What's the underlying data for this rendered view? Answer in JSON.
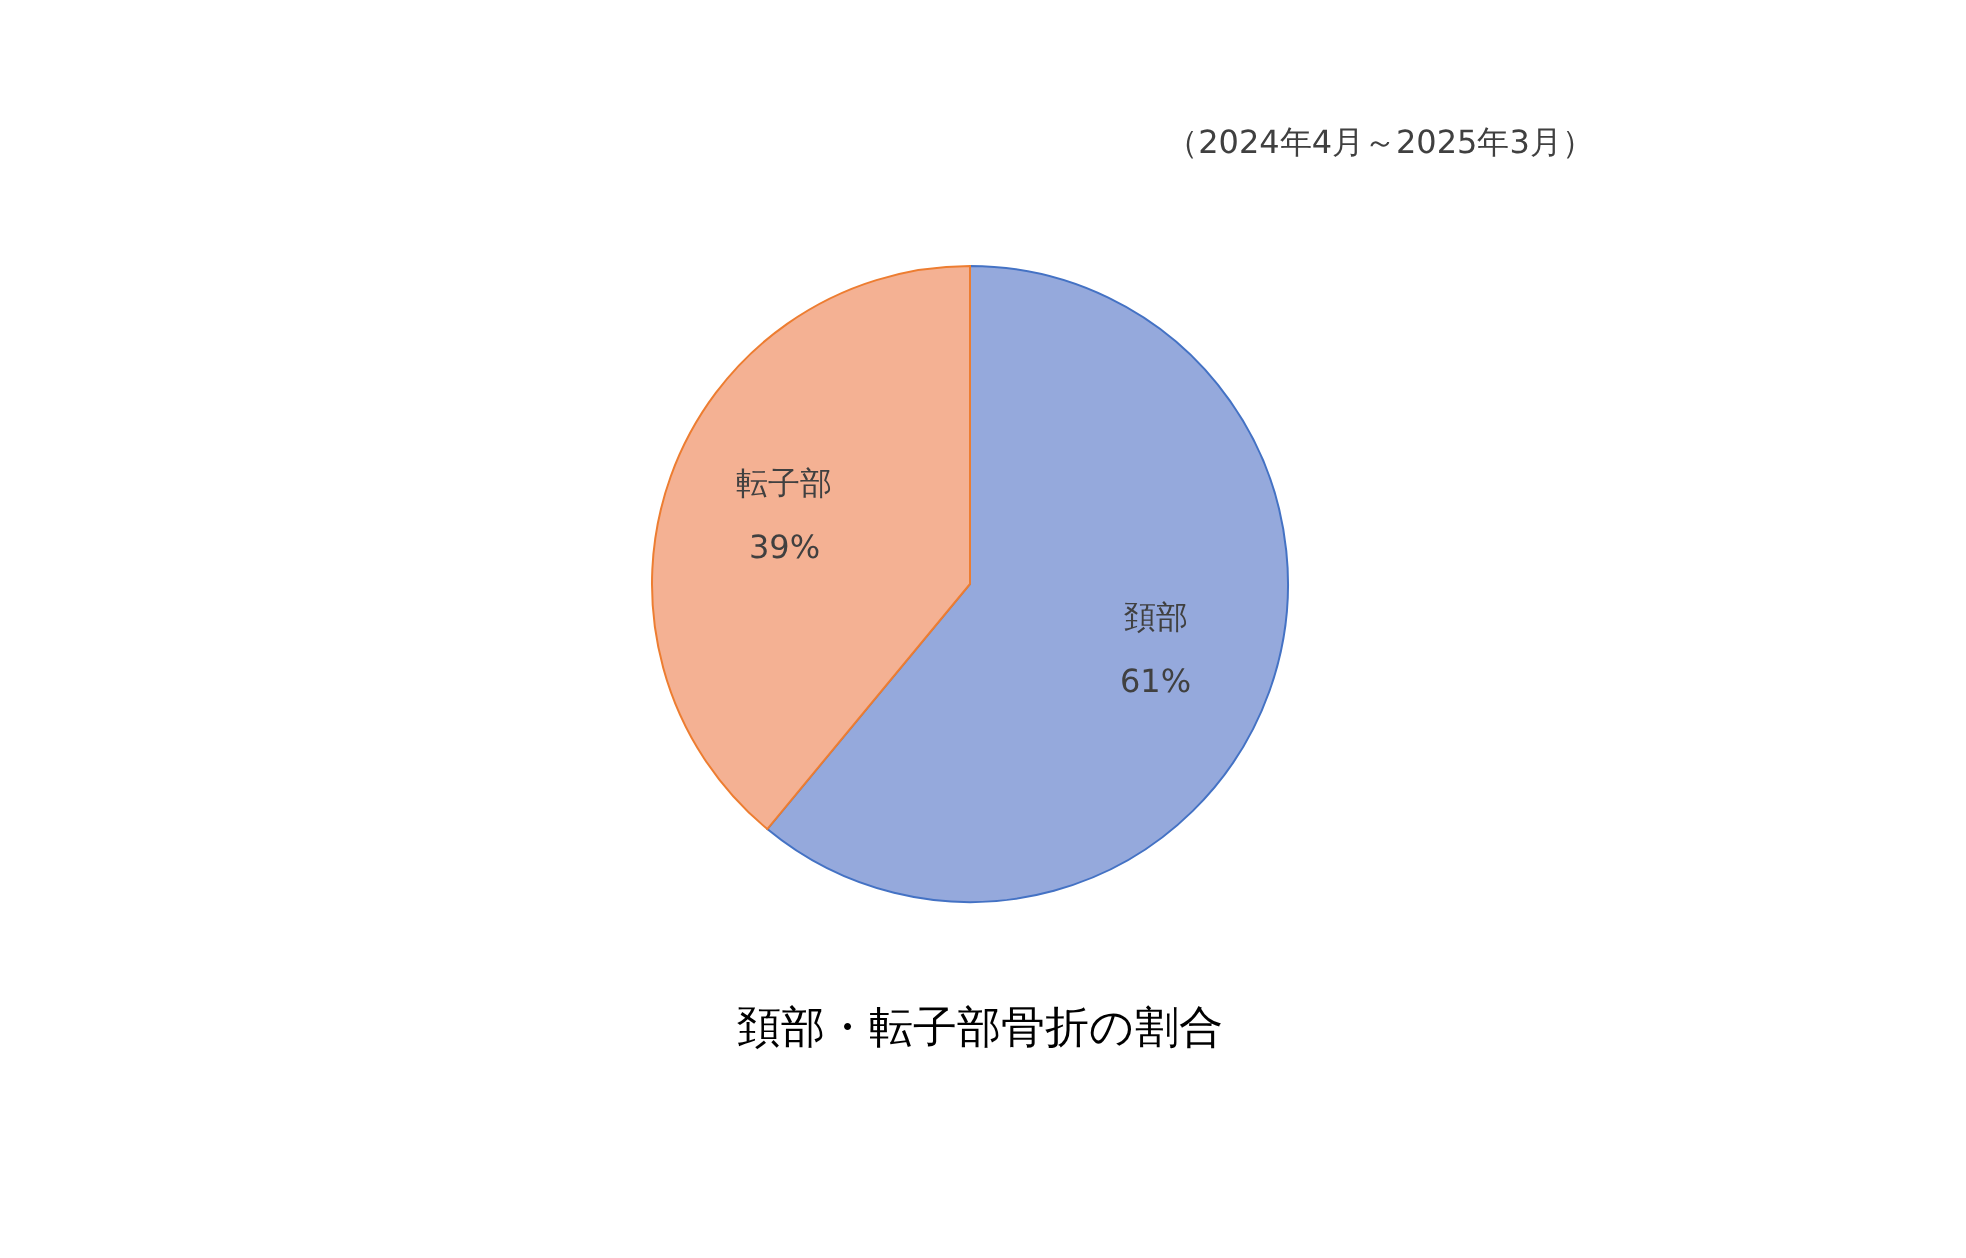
{
  "chart_data": {
    "type": "pie",
    "title": "頚部・転子部骨折の割合",
    "subtitle": "（2024年4月～2025年3月）",
    "categories": [
      "頚部",
      "転子部"
    ],
    "values": [
      61,
      39
    ],
    "colors": [
      "#95a9dc",
      "#f4b193"
    ],
    "value_labels": [
      "61%",
      "39%"
    ]
  }
}
